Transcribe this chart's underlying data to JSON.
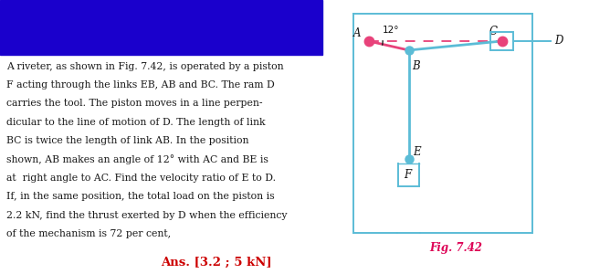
{
  "bg_color": "#ffffff",
  "text_color_body": "#1a1a1a",
  "text_color_ans": "#cc0000",
  "diagram_border_color": "#5bbcd6",
  "link_color_AB": "#e8427a",
  "dot_color_A": "#e8427a",
  "dot_color_B": "#5bbcd6",
  "dot_color_C": "#e8427a",
  "dot_color_E": "#5bbcd6",
  "angle_label": "12°",
  "fig_label": "Fig. 7.42",
  "body_lines": [
    "A riveter, as shown in Fig. 7.42, is operated by a piston",
    "F acting through the links EB, AB and BC. The ram D",
    "carries the tool. The piston moves in a line perpen-",
    "dicular to the line of motion of D. The length of link",
    "BC is twice the length of link AB. In the position",
    "shown, AB makes an angle of 12° with AC and BE is",
    "at  right angle to AC. Find the velocity ratio of E to D.",
    "If, in the same position, the total load on the piston is",
    "2.2 kN, find the thrust exerted by D when the efficiency",
    "of the mechanism is 72 per cent,"
  ],
  "ans_text": "Ans. [3.2 ; 5 kN]",
  "blue_rect_color": "#1a00cc"
}
